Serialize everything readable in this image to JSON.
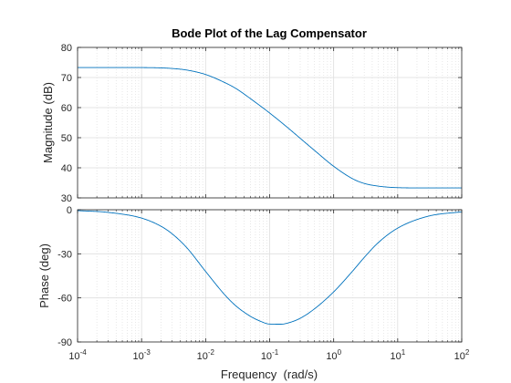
{
  "chart_data": [
    {
      "type": "line",
      "title": "Bode Plot of the Lag Compensator",
      "ylabel": "Magnitude (dB)",
      "xlabel": "",
      "xscale": "log",
      "xlim": [
        0.0001,
        100
      ],
      "ylim": [
        30,
        80
      ],
      "yticks": [
        30,
        40,
        50,
        60,
        70,
        80
      ],
      "grid": true,
      "color": "#0072bd",
      "series": [
        {
          "x": [
            0.0001,
            0.0003,
            0.001,
            0.002,
            0.003,
            0.005,
            0.01,
            0.02,
            0.03,
            0.05,
            0.1,
            0.2,
            0.3,
            0.5,
            1,
            2,
            3,
            5,
            10,
            30,
            100
          ],
          "values": [
            73.3,
            73.3,
            73.3,
            73.2,
            73.0,
            72.5,
            71.0,
            68.3,
            66.3,
            63.0,
            58.2,
            53.0,
            49.8,
            45.8,
            40.5,
            36.3,
            34.8,
            33.9,
            33.4,
            33.3,
            33.3
          ]
        }
      ]
    },
    {
      "type": "line",
      "title": "",
      "ylabel": "Phase (deg)",
      "xlabel": "Frequency  (rad/s)",
      "xscale": "log",
      "xlim": [
        0.0001,
        100
      ],
      "ylim": [
        -90,
        0
      ],
      "yticks": [
        -90,
        -60,
        -30,
        0
      ],
      "xtick_exponents": [
        "-4",
        "-3",
        "-2",
        "-1",
        "0",
        "1",
        "2"
      ],
      "xtick_base": "10",
      "grid": true,
      "color": "#0072bd",
      "series": [
        {
          "x": [
            0.0001,
            0.0003,
            0.001,
            0.002,
            0.003,
            0.005,
            0.01,
            0.02,
            0.03,
            0.05,
            0.07,
            0.1,
            0.15,
            0.2,
            0.3,
            0.5,
            1,
            2,
            3,
            5,
            10,
            30,
            100
          ],
          "values": [
            -0.6,
            -1.8,
            -5.7,
            -11.2,
            -16.4,
            -25.5,
            -42.0,
            -58.0,
            -65.6,
            -72.5,
            -75.7,
            -77.8,
            -77.9,
            -76.9,
            -73.9,
            -67.5,
            -55.9,
            -41.5,
            -32.5,
            -22.3,
            -12.5,
            -4.4,
            -1.4
          ]
        }
      ]
    }
  ]
}
